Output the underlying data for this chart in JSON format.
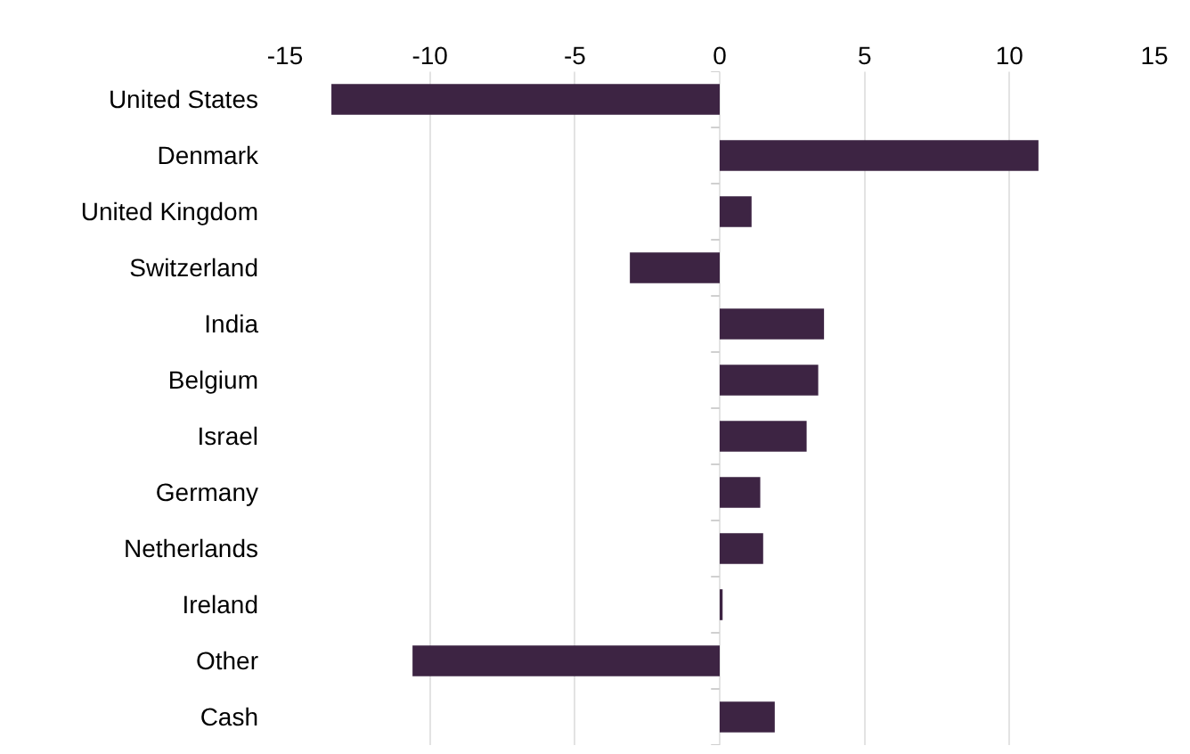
{
  "chart_data": {
    "type": "bar",
    "orientation": "horizontal",
    "categories": [
      "United States",
      "Denmark",
      "United Kingdom",
      "Switzerland",
      "India",
      "Belgium",
      "Israel",
      "Germany",
      "Netherlands",
      "Ireland",
      "Other",
      "Cash"
    ],
    "values": [
      -13.4,
      11.0,
      1.1,
      -3.1,
      3.6,
      3.4,
      3.0,
      1.4,
      1.5,
      0.1,
      -10.6,
      1.9
    ],
    "color": "#3d2443",
    "xlim": [
      -15,
      15
    ],
    "xticks": [
      -15,
      -10,
      -5,
      0,
      5,
      10,
      15
    ],
    "grid": "x"
  }
}
